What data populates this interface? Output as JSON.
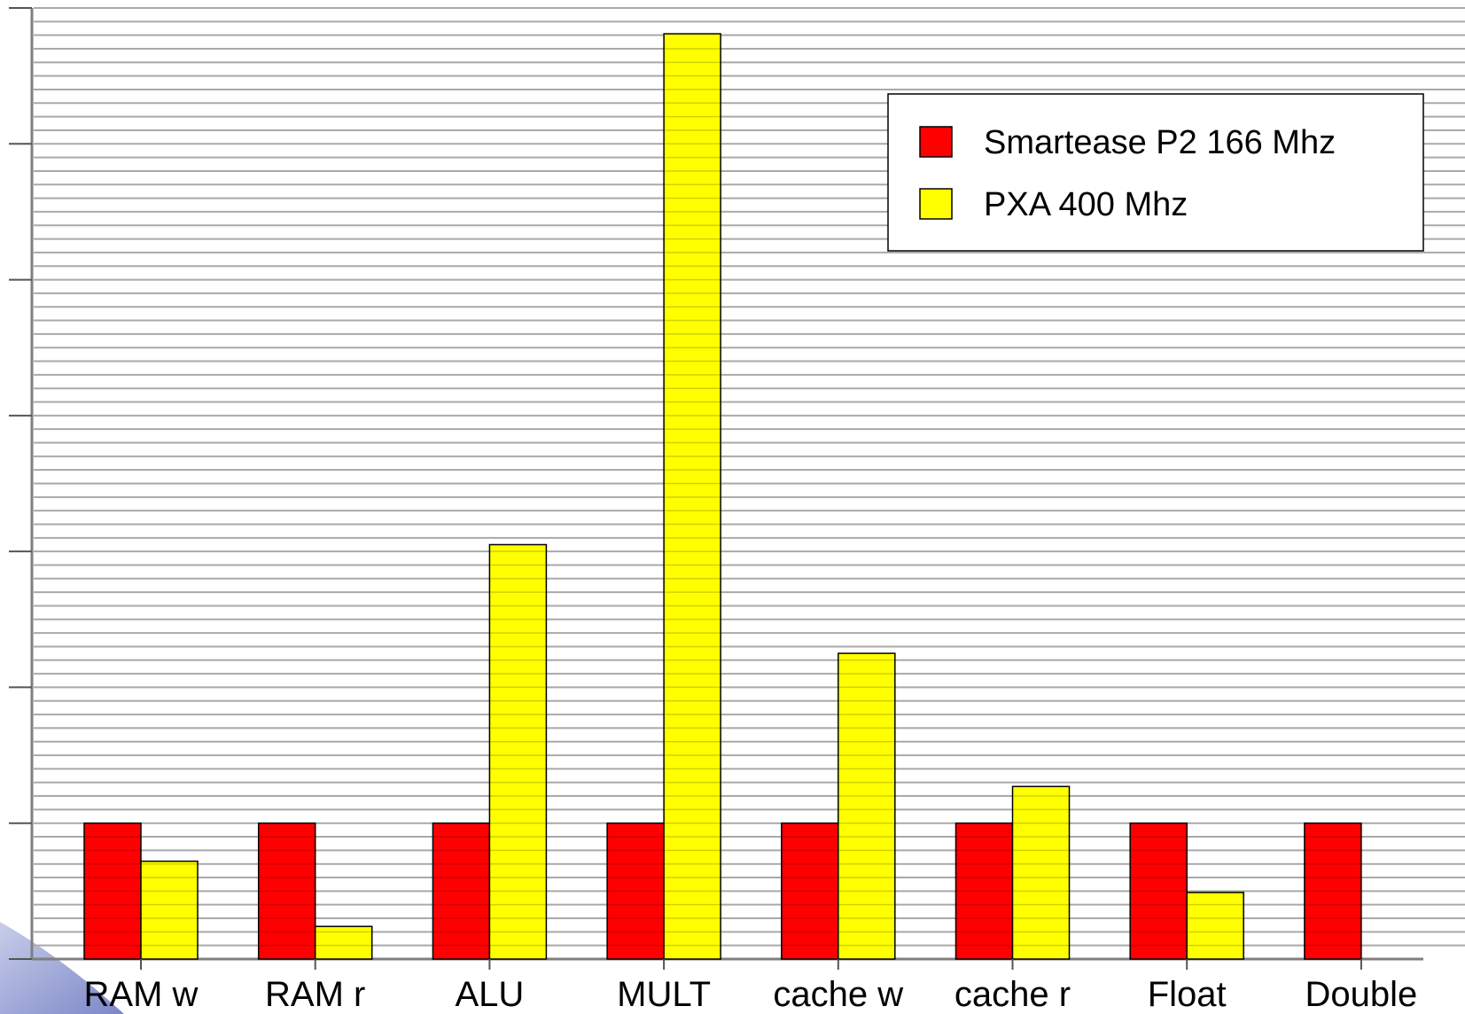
{
  "chart_data": {
    "type": "bar",
    "categories": [
      "RAM w",
      "RAM r",
      "ALU",
      "MULT",
      "cache w",
      "cache r",
      "Float",
      "Double"
    ],
    "series": [
      {
        "name": "Smartease P2 166 Mhz",
        "color": "#ff0000",
        "values": [
          1,
          1,
          1,
          1,
          1,
          1,
          1,
          1
        ]
      },
      {
        "name": "PXA 400 Mhz",
        "color": "#ffff00",
        "values": [
          0.72,
          0.24,
          3.05,
          6.81,
          2.25,
          1.27,
          0.49,
          0
        ]
      }
    ],
    "ylim": [
      0,
      7
    ],
    "y_ticks": [
      0,
      1,
      2,
      3,
      4,
      5,
      6,
      7
    ],
    "grid": true,
    "legend_position": "top-right"
  }
}
